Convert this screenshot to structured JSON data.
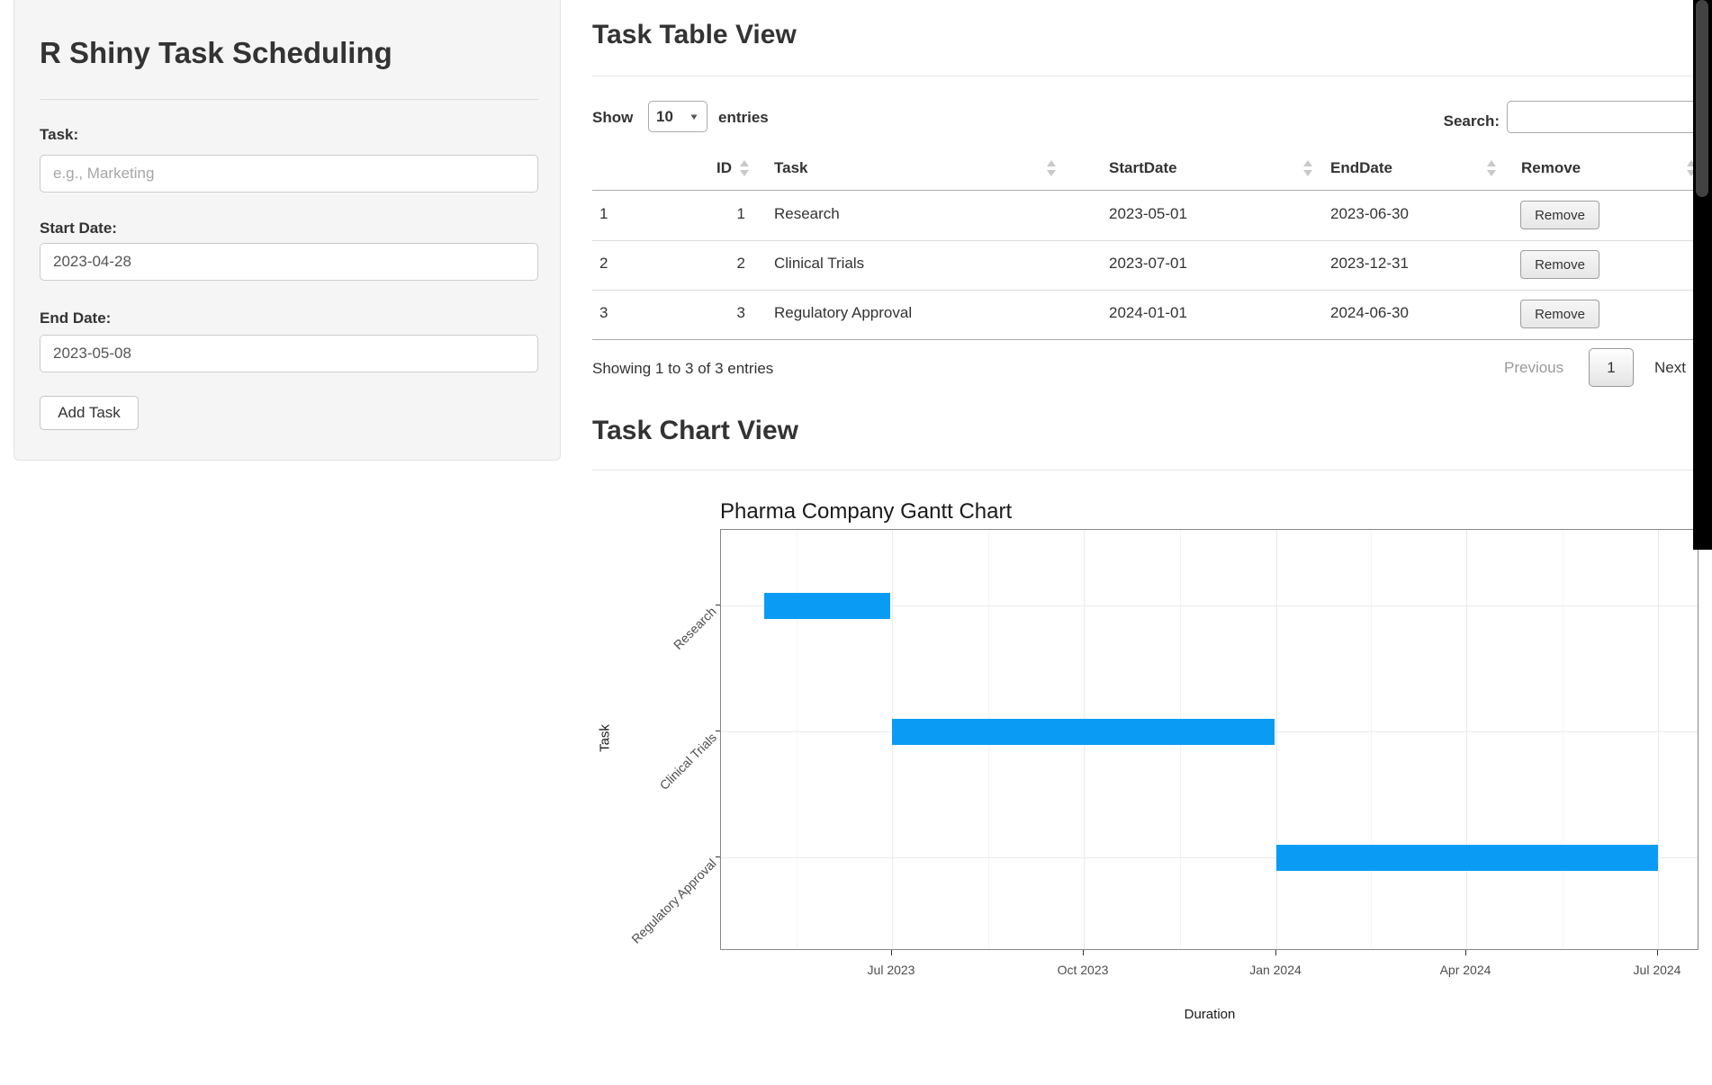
{
  "sidebar": {
    "title": "R Shiny Task Scheduling",
    "task_label": "Task:",
    "task_placeholder": "e.g., Marketing",
    "task_value": "",
    "start_label": "Start Date:",
    "start_value": "2023-04-28",
    "end_label": "End Date:",
    "end_value": "2023-05-08",
    "add_button": "Add Task"
  },
  "table_section": {
    "heading": "Task Table View",
    "show_label": "Show",
    "page_length": "10",
    "entries_label": "entries",
    "search_label": "Search:",
    "search_value": "",
    "columns": [
      "ID",
      "Task",
      "StartDate",
      "EndDate",
      "Remove"
    ],
    "rows": [
      {
        "row_name": "1",
        "id": "1",
        "task": "Research",
        "start": "2023-05-01",
        "end": "2023-06-30",
        "remove_label": "Remove"
      },
      {
        "row_name": "2",
        "id": "2",
        "task": "Clinical Trials",
        "start": "2023-07-01",
        "end": "2023-12-31",
        "remove_label": "Remove"
      },
      {
        "row_name": "3",
        "id": "3",
        "task": "Regulatory Approval",
        "start": "2024-01-01",
        "end": "2024-06-30",
        "remove_label": "Remove"
      }
    ],
    "info": "Showing 1 to 3 of 3 entries",
    "pagination": {
      "previous": "Previous",
      "page": "1",
      "next": "Next"
    }
  },
  "chart_section": {
    "heading": "Task Chart View"
  },
  "chart_data": {
    "type": "gantt-bar",
    "title": "Pharma Company Gantt Chart",
    "xlabel": "Duration",
    "ylabel": "Task",
    "tasks": [
      "Research",
      "Clinical Trials",
      "Regulatory Approval"
    ],
    "series": [
      {
        "name": "Research",
        "start": "2023-05-01",
        "end": "2023-06-30"
      },
      {
        "name": "Clinical Trials",
        "start": "2023-07-01",
        "end": "2023-12-31"
      },
      {
        "name": "Regulatory Approval",
        "start": "2024-01-01",
        "end": "2024-06-30"
      }
    ],
    "x_ticks": [
      "Jul 2023",
      "Oct 2023",
      "Jan 2024",
      "Apr 2024",
      "Jul 2024"
    ],
    "grid": true,
    "legend": false,
    "bar_color": "#0a9cf5"
  }
}
